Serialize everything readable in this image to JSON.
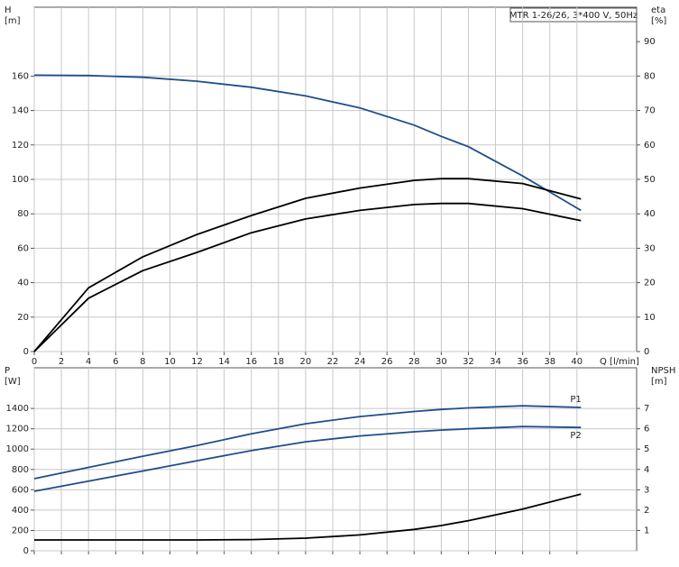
{
  "title": "MTR 1-26/26, 3*400 V, 50Hz",
  "chart_data": [
    {
      "type": "line",
      "ylabel": [
        "H",
        "[m]"
      ],
      "y2label": [
        "eta",
        "[%]"
      ],
      "xlabel": "Q [l/min]",
      "x": [
        0,
        4,
        8,
        12,
        16,
        20,
        24,
        28,
        30,
        32,
        36,
        40.3
      ],
      "xlim": [
        0,
        44.4
      ],
      "xticks": [
        0,
        2,
        4,
        6,
        8,
        10,
        12,
        14,
        16,
        18,
        20,
        22,
        24,
        26,
        28,
        30,
        32,
        34,
        36,
        38,
        40
      ],
      "ylim": [
        0,
        200
      ],
      "yticks": [
        0,
        20,
        40,
        60,
        80,
        100,
        120,
        140,
        160
      ],
      "y2lim": [
        0,
        100
      ],
      "y2ticks": [
        0,
        10,
        20,
        30,
        40,
        50,
        60,
        70,
        80,
        90
      ],
      "grid": true,
      "series": [
        {
          "color": "#1f4e8c",
          "values": [
            160.5,
            160.3,
            159.3,
            157,
            153.5,
            148.5,
            141.5,
            131.5,
            125,
            119,
            102,
            82
          ]
        },
        {
          "color": "#000000",
          "axis": "y2",
          "values": [
            0,
            18.5,
            27.5,
            34,
            39.5,
            44.5,
            47.5,
            49.7,
            50.2,
            50.2,
            48.8,
            44.3
          ]
        },
        {
          "color": "#000000",
          "axis": "y2",
          "values": [
            0,
            15.5,
            23.5,
            28.8,
            34.5,
            38.5,
            41,
            42.7,
            43,
            43,
            41.5,
            38
          ]
        }
      ]
    },
    {
      "type": "line",
      "ylabel": [
        "P",
        "[W]"
      ],
      "y2label": [
        "NPSH",
        "[m]"
      ],
      "x": [
        0,
        4,
        8,
        12,
        16,
        20,
        24,
        28,
        30,
        32,
        36,
        40.3
      ],
      "xlim": [
        0,
        44.4
      ],
      "xticks": [
        0,
        2,
        4,
        6,
        8,
        10,
        12,
        14,
        16,
        18,
        20,
        22,
        24,
        26,
        28,
        30,
        32,
        34,
        36,
        38,
        40
      ],
      "ylim": [
        0,
        1800
      ],
      "yticks": [
        0,
        200,
        400,
        600,
        800,
        1000,
        1200,
        1400
      ],
      "y2lim": [
        0,
        9
      ],
      "y2ticks": [
        1,
        2,
        3,
        4,
        5,
        6,
        7
      ],
      "grid": true,
      "series": [
        {
          "name": "P1",
          "color": "#1f4e8c",
          "values": [
            709,
            820,
            930,
            1036,
            1150,
            1249,
            1320,
            1370,
            1390,
            1405,
            1426,
            1410
          ]
        },
        {
          "name": "P2",
          "color": "#1f4e8c",
          "values": [
            585,
            685,
            785,
            886,
            985,
            1072,
            1130,
            1170,
            1187,
            1200,
            1222,
            1213
          ]
        },
        {
          "color": "#000000",
          "axis": "y2",
          "values": [
            0.53,
            0.53,
            0.53,
            0.53,
            0.55,
            0.62,
            0.78,
            1.05,
            1.24,
            1.48,
            2.05,
            2.79
          ]
        }
      ]
    }
  ]
}
